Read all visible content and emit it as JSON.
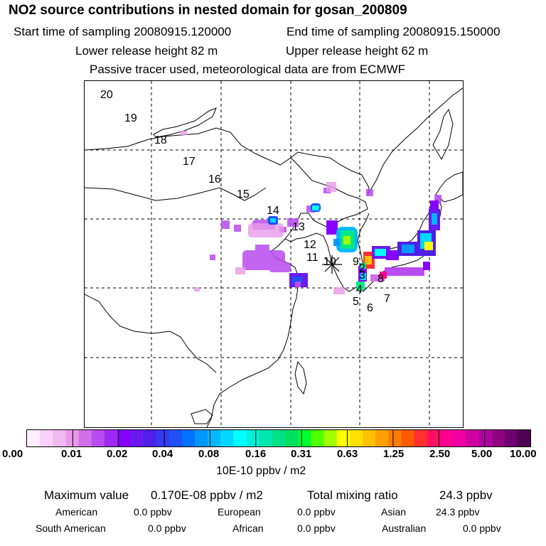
{
  "header": {
    "title": "NO2 source contributions in nested domain for gosan_200809",
    "start_label": "Start time of sampling 20080915.120000",
    "end_label": "End time of sampling 20080915.150000",
    "lower_height": "Lower release height   82 m",
    "upper_height": "Upper release height   62 m",
    "tracer_note": "Passive tracer used, meteorological data are from ECMWF"
  },
  "trajectory_labels": [
    "20",
    "19",
    "18",
    "17",
    "16",
    "15",
    "14",
    "13",
    "12",
    "11",
    "10",
    "9",
    "8",
    "7",
    "6",
    "5",
    "4",
    "3",
    "2"
  ],
  "colorbar": {
    "ticks": [
      "0.00",
      "0.01",
      "0.02",
      "0.04",
      "0.08",
      "0.16",
      "0.31",
      "0.63",
      "1.25",
      "2.50",
      "5.00",
      "10.00"
    ],
    "unit": "10E-10 ppbv / m2",
    "colors": [
      "#ffeeff",
      "#f8d2f8",
      "#f0b8f0",
      "#e89ae8",
      "#d070e8",
      "#b84cf0",
      "#a028f4",
      "#8800ff",
      "#6a1af0",
      "#5020e8",
      "#3838f0",
      "#2050f8",
      "#0070ff",
      "#0098ff",
      "#00b8ff",
      "#00d8ff",
      "#00ffff",
      "#00f0d8",
      "#00e8b0",
      "#00e088",
      "#00e060",
      "#00ff30",
      "#50ff00",
      "#a0ff00",
      "#ffff00",
      "#ffe000",
      "#ffc000",
      "#ffa000",
      "#ff7c00",
      "#ff5a00",
      "#ff3030",
      "#ff1060",
      "#ff0090",
      "#f000a0",
      "#d000a0",
      "#b000a0",
      "#900080",
      "#700070",
      "#500050"
    ]
  },
  "stats": {
    "maximum_label": "Maximum value",
    "maximum_value": "0.170E-08 ppbv / m2",
    "total_label": "Total mixing ratio",
    "total_value": "24.3 ppbv",
    "regions": [
      {
        "name": "American",
        "value": "0.0 ppbv"
      },
      {
        "name": "European",
        "value": "0.0 ppbv"
      },
      {
        "name": "Asian",
        "value": "24.3 ppbv"
      },
      {
        "name": "South American",
        "value": "0.0 ppbv"
      },
      {
        "name": "African",
        "value": "0.0 ppbv"
      },
      {
        "name": "Australian",
        "value": "0.0 ppbv"
      }
    ]
  }
}
